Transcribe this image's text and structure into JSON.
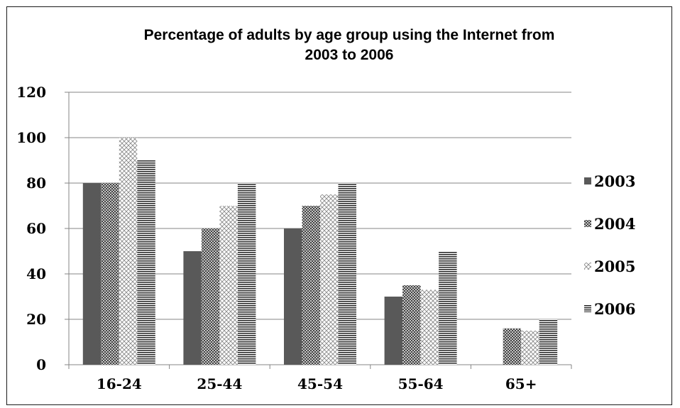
{
  "chart_data": {
    "type": "bar",
    "title": [
      "Percentage of adults by age group using the Internet from",
      "2003 to 2006"
    ],
    "xlabel": "",
    "ylabel": "",
    "categories": [
      "16-24",
      "25-44",
      "45-54",
      "55-64",
      "65+"
    ],
    "ylim": [
      0,
      120
    ],
    "yticks": [
      0,
      20,
      40,
      60,
      80,
      100,
      120
    ],
    "grid": true,
    "legend": "right",
    "series": [
      {
        "name": "2003",
        "values": [
          80,
          50,
          60,
          30,
          null
        ],
        "pattern": "solid"
      },
      {
        "name": "2004",
        "values": [
          80,
          60,
          70,
          35,
          16
        ],
        "pattern": "crosshatch"
      },
      {
        "name": "2005",
        "values": [
          100,
          70,
          75,
          33,
          15
        ],
        "pattern": "lightdiag"
      },
      {
        "name": "2006",
        "values": [
          90,
          80,
          80,
          50,
          20
        ],
        "pattern": "horizontal"
      }
    ],
    "colors": {
      "bar_dark": "#595959",
      "pattern_ink": "#4a4a4a",
      "grid": "#868686",
      "axis": "#868686"
    }
  }
}
